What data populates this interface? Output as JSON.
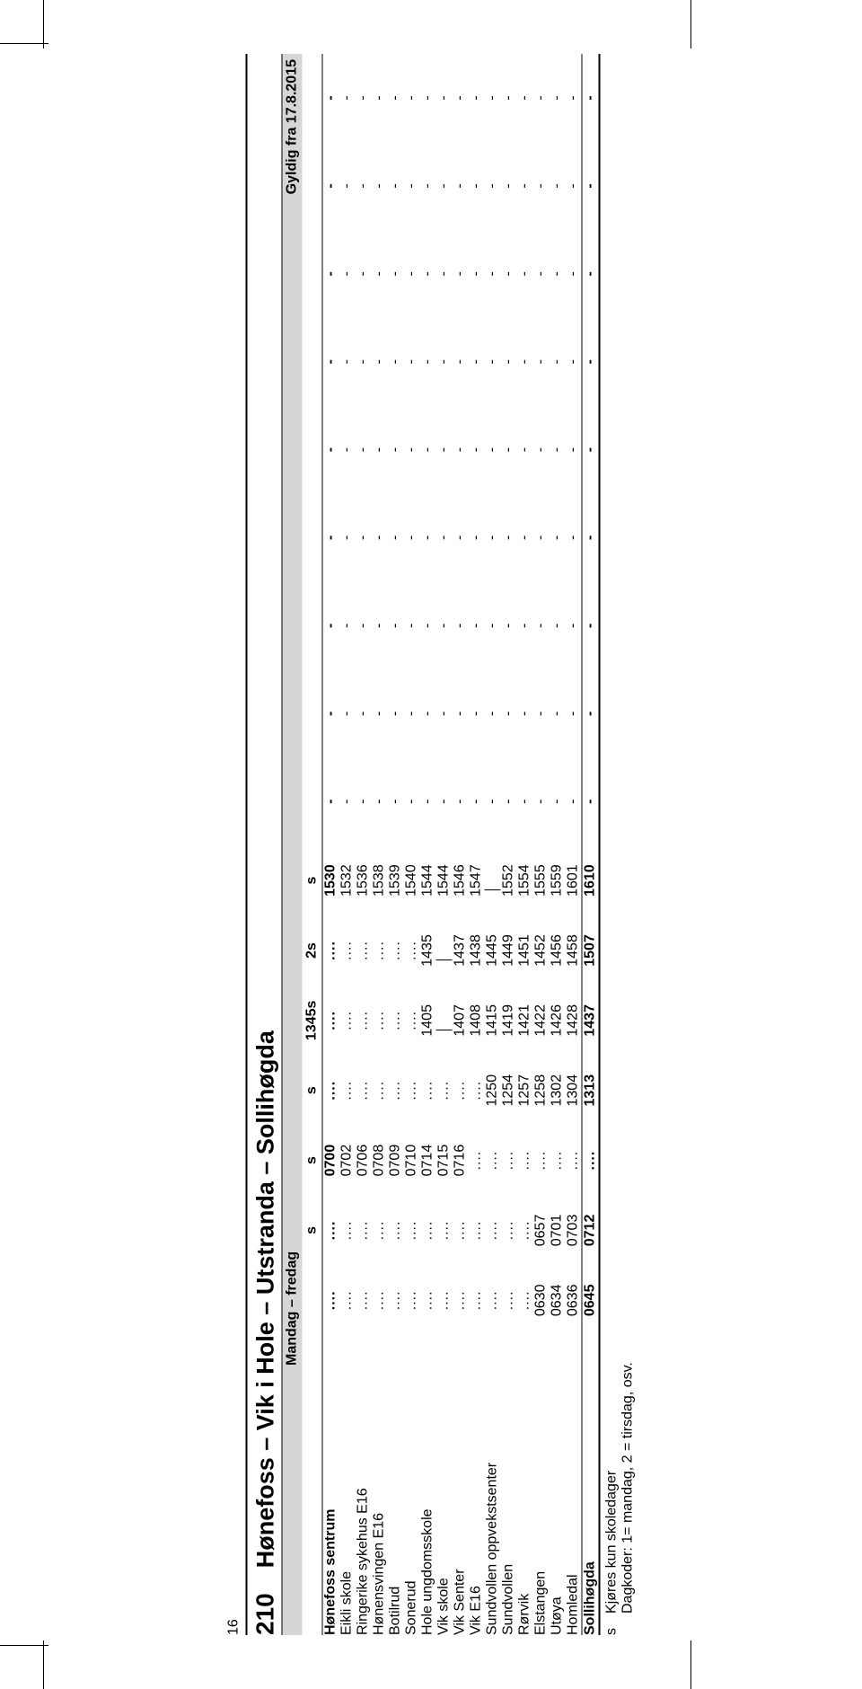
{
  "page_number": "16",
  "route_number": "210",
  "route_title": "Hønefoss – Vik i Hole – Utstranda – Sollihøgda",
  "days_label": "Mandag – fredag",
  "valid_label": "Gyldig fra 17.8.2015",
  "column_headers": [
    "",
    "s",
    "s",
    "s",
    "1345s",
    "2s",
    "s",
    "",
    "",
    "",
    "",
    "",
    "",
    "",
    "",
    ""
  ],
  "stops": [
    {
      "name": "Hønefoss sentrum",
      "bold": true,
      "times": [
        "....",
        "....",
        "0700",
        "....",
        "....",
        "....",
        "1530",
        "-",
        "-",
        "-",
        "-",
        "-",
        "-",
        "-",
        "-",
        "-"
      ]
    },
    {
      "name": "Eikli skole",
      "times": [
        "....",
        "....",
        "0702",
        "....",
        "....",
        "....",
        "1532",
        "-",
        "-",
        "-",
        "-",
        "-",
        "-",
        "-",
        "-",
        "-"
      ]
    },
    {
      "name": "Ringerike sykehus E16",
      "times": [
        "....",
        "....",
        "0706",
        "....",
        "....",
        "....",
        "1536",
        "-",
        "-",
        "-",
        "-",
        "-",
        "-",
        "-",
        "-",
        "-"
      ]
    },
    {
      "name": "Hønensvingen E16",
      "times": [
        "....",
        "....",
        "0708",
        "....",
        "....",
        "....",
        "1538",
        "-",
        "-",
        "-",
        "-",
        "-",
        "-",
        "-",
        "-",
        "-"
      ]
    },
    {
      "name": "Botilrud",
      "times": [
        "....",
        "....",
        "0709",
        "....",
        "....",
        "....",
        "1539",
        "-",
        "-",
        "-",
        "-",
        "-",
        "-",
        "-",
        "-",
        "-"
      ]
    },
    {
      "name": "Sonerud",
      "times": [
        "....",
        "....",
        "0710",
        "....",
        "....",
        "....",
        "1540",
        "-",
        "-",
        "-",
        "-",
        "-",
        "-",
        "-",
        "-",
        "-"
      ]
    },
    {
      "name": "Hole ungdomsskole",
      "times": [
        "....",
        "....",
        "0714",
        "....",
        "1405",
        "1435",
        "1544",
        "-",
        "-",
        "-",
        "-",
        "-",
        "-",
        "-",
        "-",
        "-"
      ]
    },
    {
      "name": "Vik skole",
      "times": [
        "....",
        "....",
        "0715",
        "....",
        "|",
        "|",
        "1544",
        "-",
        "-",
        "-",
        "-",
        "-",
        "-",
        "-",
        "-",
        "-"
      ]
    },
    {
      "name": "Vik Senter",
      "times": [
        "....",
        "....",
        "0716",
        "....",
        "1407",
        "1437",
        "1546",
        "-",
        "-",
        "-",
        "-",
        "-",
        "-",
        "-",
        "-",
        "-"
      ]
    },
    {
      "name": "Vik E16",
      "times": [
        "....",
        "....",
        "....",
        "....",
        "1408",
        "1438",
        "1547",
        "-",
        "-",
        "-",
        "-",
        "-",
        "-",
        "-",
        "-",
        "-"
      ]
    },
    {
      "name": "Sundvollen oppvekstsenter",
      "times": [
        "....",
        "....",
        "....",
        "1250",
        "1415",
        "1445",
        "|",
        "-",
        "-",
        "-",
        "-",
        "-",
        "-",
        "-",
        "-",
        "-"
      ]
    },
    {
      "name": "Sundvollen",
      "times": [
        "....",
        "....",
        "....",
        "1254",
        "1419",
        "1449",
        "1552",
        "-",
        "-",
        "-",
        "-",
        "-",
        "-",
        "-",
        "-",
        "-"
      ]
    },
    {
      "name": "Rørvik",
      "times": [
        "....",
        "....",
        "....",
        "1257",
        "1421",
        "1451",
        "1554",
        "-",
        "-",
        "-",
        "-",
        "-",
        "-",
        "-",
        "-",
        "-"
      ]
    },
    {
      "name": "Elstangen",
      "times": [
        "0630",
        "0657",
        "....",
        "1258",
        "1422",
        "1452",
        "1555",
        "-",
        "-",
        "-",
        "-",
        "-",
        "-",
        "-",
        "-",
        "-"
      ]
    },
    {
      "name": "Utøya",
      "times": [
        "0634",
        "0701",
        "....",
        "1302",
        "1426",
        "1456",
        "1559",
        "-",
        "-",
        "-",
        "-",
        "-",
        "-",
        "-",
        "-",
        "-"
      ]
    },
    {
      "name": "Homledal",
      "times": [
        "0636",
        "0703",
        "....",
        "1304",
        "1428",
        "1458",
        "1601",
        "-",
        "-",
        "-",
        "-",
        "-",
        "-",
        "-",
        "-",
        "-"
      ]
    },
    {
      "name": "Sollihøgda",
      "bold": true,
      "times": [
        "0645",
        "0712",
        "....",
        "1313",
        "1437",
        "1507",
        "1610",
        "-",
        "-",
        "-",
        "-",
        "-",
        "-",
        "-",
        "-",
        "-"
      ]
    }
  ],
  "footnote_key": "s",
  "footnote_line1": "Kjøres kun skoledager",
  "footnote_line2": "Dagkoder: 1= mandag, 2 = tirsdag, osv.",
  "colors": {
    "bg": "#ffffff",
    "header_bg": "#d6d6d6",
    "rule": "#000000",
    "text": "#000000"
  }
}
